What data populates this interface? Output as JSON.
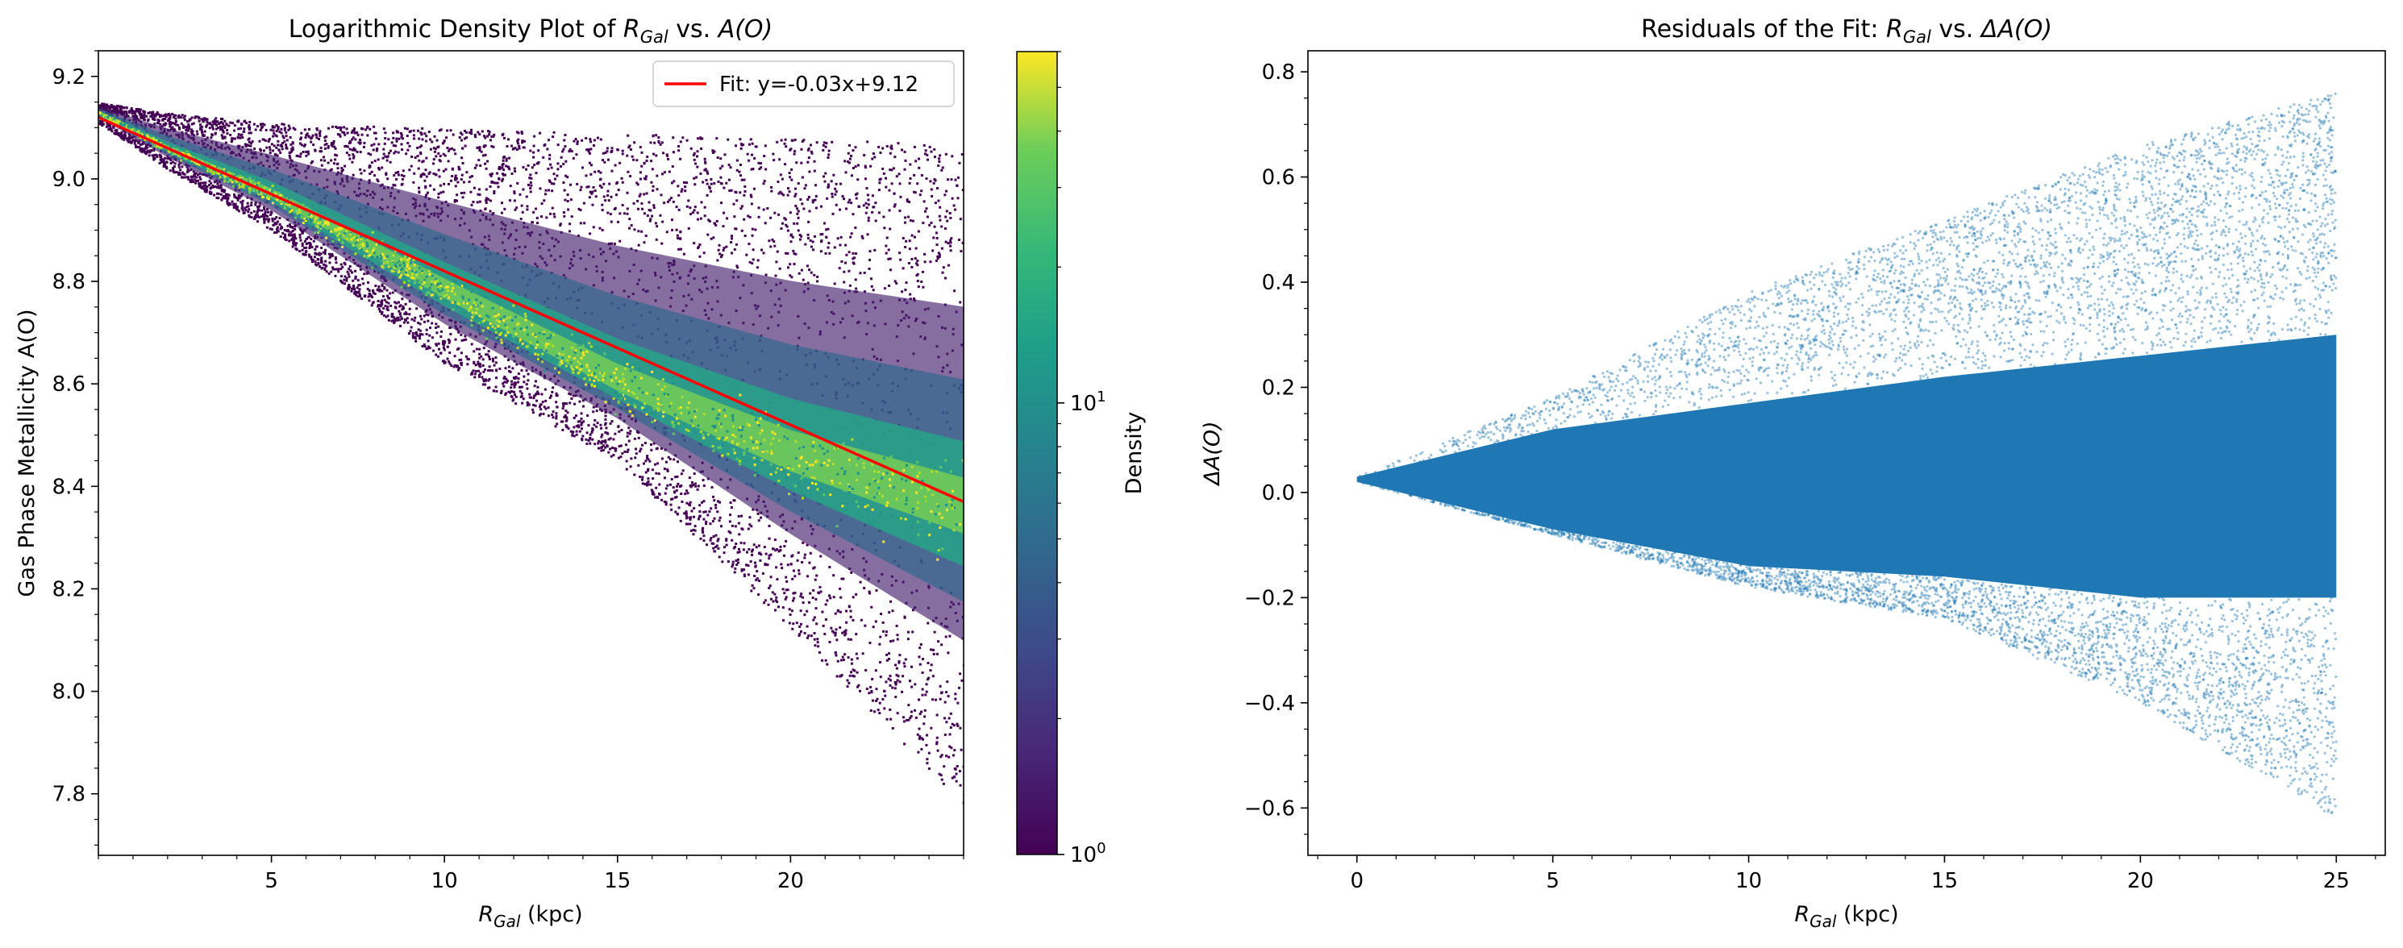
{
  "chart_data": [
    {
      "type": "heatmap",
      "title_prefix": "Logarithmic Density Plot of ",
      "title_r_main": "R",
      "title_r_sub": "Gal",
      "title_mid": " vs. ",
      "title_y": "A(O)",
      "xlabel_main": "R",
      "xlabel_sub": "Gal",
      "xlabel_unit": " (kpc)",
      "ylabel": "Gas Phase Metallicity A(O)",
      "xlim": [
        0,
        25
      ],
      "ylim": [
        7.68,
        9.25
      ],
      "xticks": [
        5,
        10,
        15,
        20
      ],
      "yticks": [
        7.8,
        8.0,
        8.2,
        8.4,
        8.6,
        8.8,
        9.0,
        9.2
      ],
      "xtick_labels": [
        "5",
        "10",
        "15",
        "20"
      ],
      "ytick_labels": [
        "7.8",
        "8.0",
        "8.2",
        "8.4",
        "8.6",
        "8.8",
        "9.0",
        "9.2"
      ],
      "fit": {
        "slope": -0.03,
        "intercept": 9.12,
        "x": [
          0,
          25
        ],
        "color": "#ff0000",
        "label": "Fit: y=-0.03x+9.12"
      },
      "legend_position": "top-right",
      "colorbar": {
        "label": "Density",
        "scale": "log",
        "range": [
          1,
          60
        ],
        "tick_labels": [
          {
            "base": "10",
            "exp": "0",
            "value": 1
          },
          {
            "base": "10",
            "exp": "1",
            "value": 10
          }
        ],
        "colormap": "viridis"
      },
      "density_profile": {
        "x": [
          0,
          2,
          5,
          10,
          15,
          20,
          25
        ],
        "ridge": [
          9.13,
          9.06,
          8.97,
          8.78,
          8.6,
          8.46,
          8.36
        ],
        "upper_edge": [
          9.15,
          9.13,
          9.11,
          9.1,
          9.09,
          9.08,
          9.07
        ],
        "lower_edge": [
          9.11,
          9.02,
          8.9,
          8.64,
          8.45,
          8.12,
          7.78
        ]
      }
    },
    {
      "type": "scatter",
      "title_prefix": "Residuals of the Fit: ",
      "title_r_main": "R",
      "title_r_sub": "Gal",
      "title_mid": " vs. ",
      "title_y": "ΔA(O)",
      "xlabel_main": "R",
      "xlabel_sub": "Gal",
      "xlabel_unit": " (kpc)",
      "ylabel": "ΔA(O)",
      "xlim": [
        -1.25,
        26.25
      ],
      "ylim": [
        -0.69,
        0.84
      ],
      "xticks": [
        0,
        5,
        10,
        15,
        20,
        25
      ],
      "yticks": [
        -0.6,
        -0.4,
        -0.2,
        0.0,
        0.2,
        0.4,
        0.6,
        0.8
      ],
      "xtick_labels": [
        "0",
        "5",
        "10",
        "15",
        "20",
        "25"
      ],
      "ytick_labels": [
        "−0.6",
        "−0.4",
        "−0.2",
        "0.0",
        "0.2",
        "0.4",
        "0.6",
        "0.8"
      ],
      "marker_color": "#1f77b4",
      "residual_envelope": {
        "x": [
          0,
          5,
          10,
          15,
          20,
          25
        ],
        "dense_upper": [
          0.03,
          0.12,
          0.17,
          0.22,
          0.26,
          0.3
        ],
        "dense_lower": [
          0.02,
          -0.07,
          -0.14,
          -0.16,
          -0.2,
          -0.2
        ],
        "sparse_upper": [
          0.03,
          0.18,
          0.38,
          0.52,
          0.66,
          0.76
        ],
        "sparse_lower": [
          0.02,
          -0.08,
          -0.18,
          -0.24,
          -0.4,
          -0.62
        ]
      }
    }
  ]
}
